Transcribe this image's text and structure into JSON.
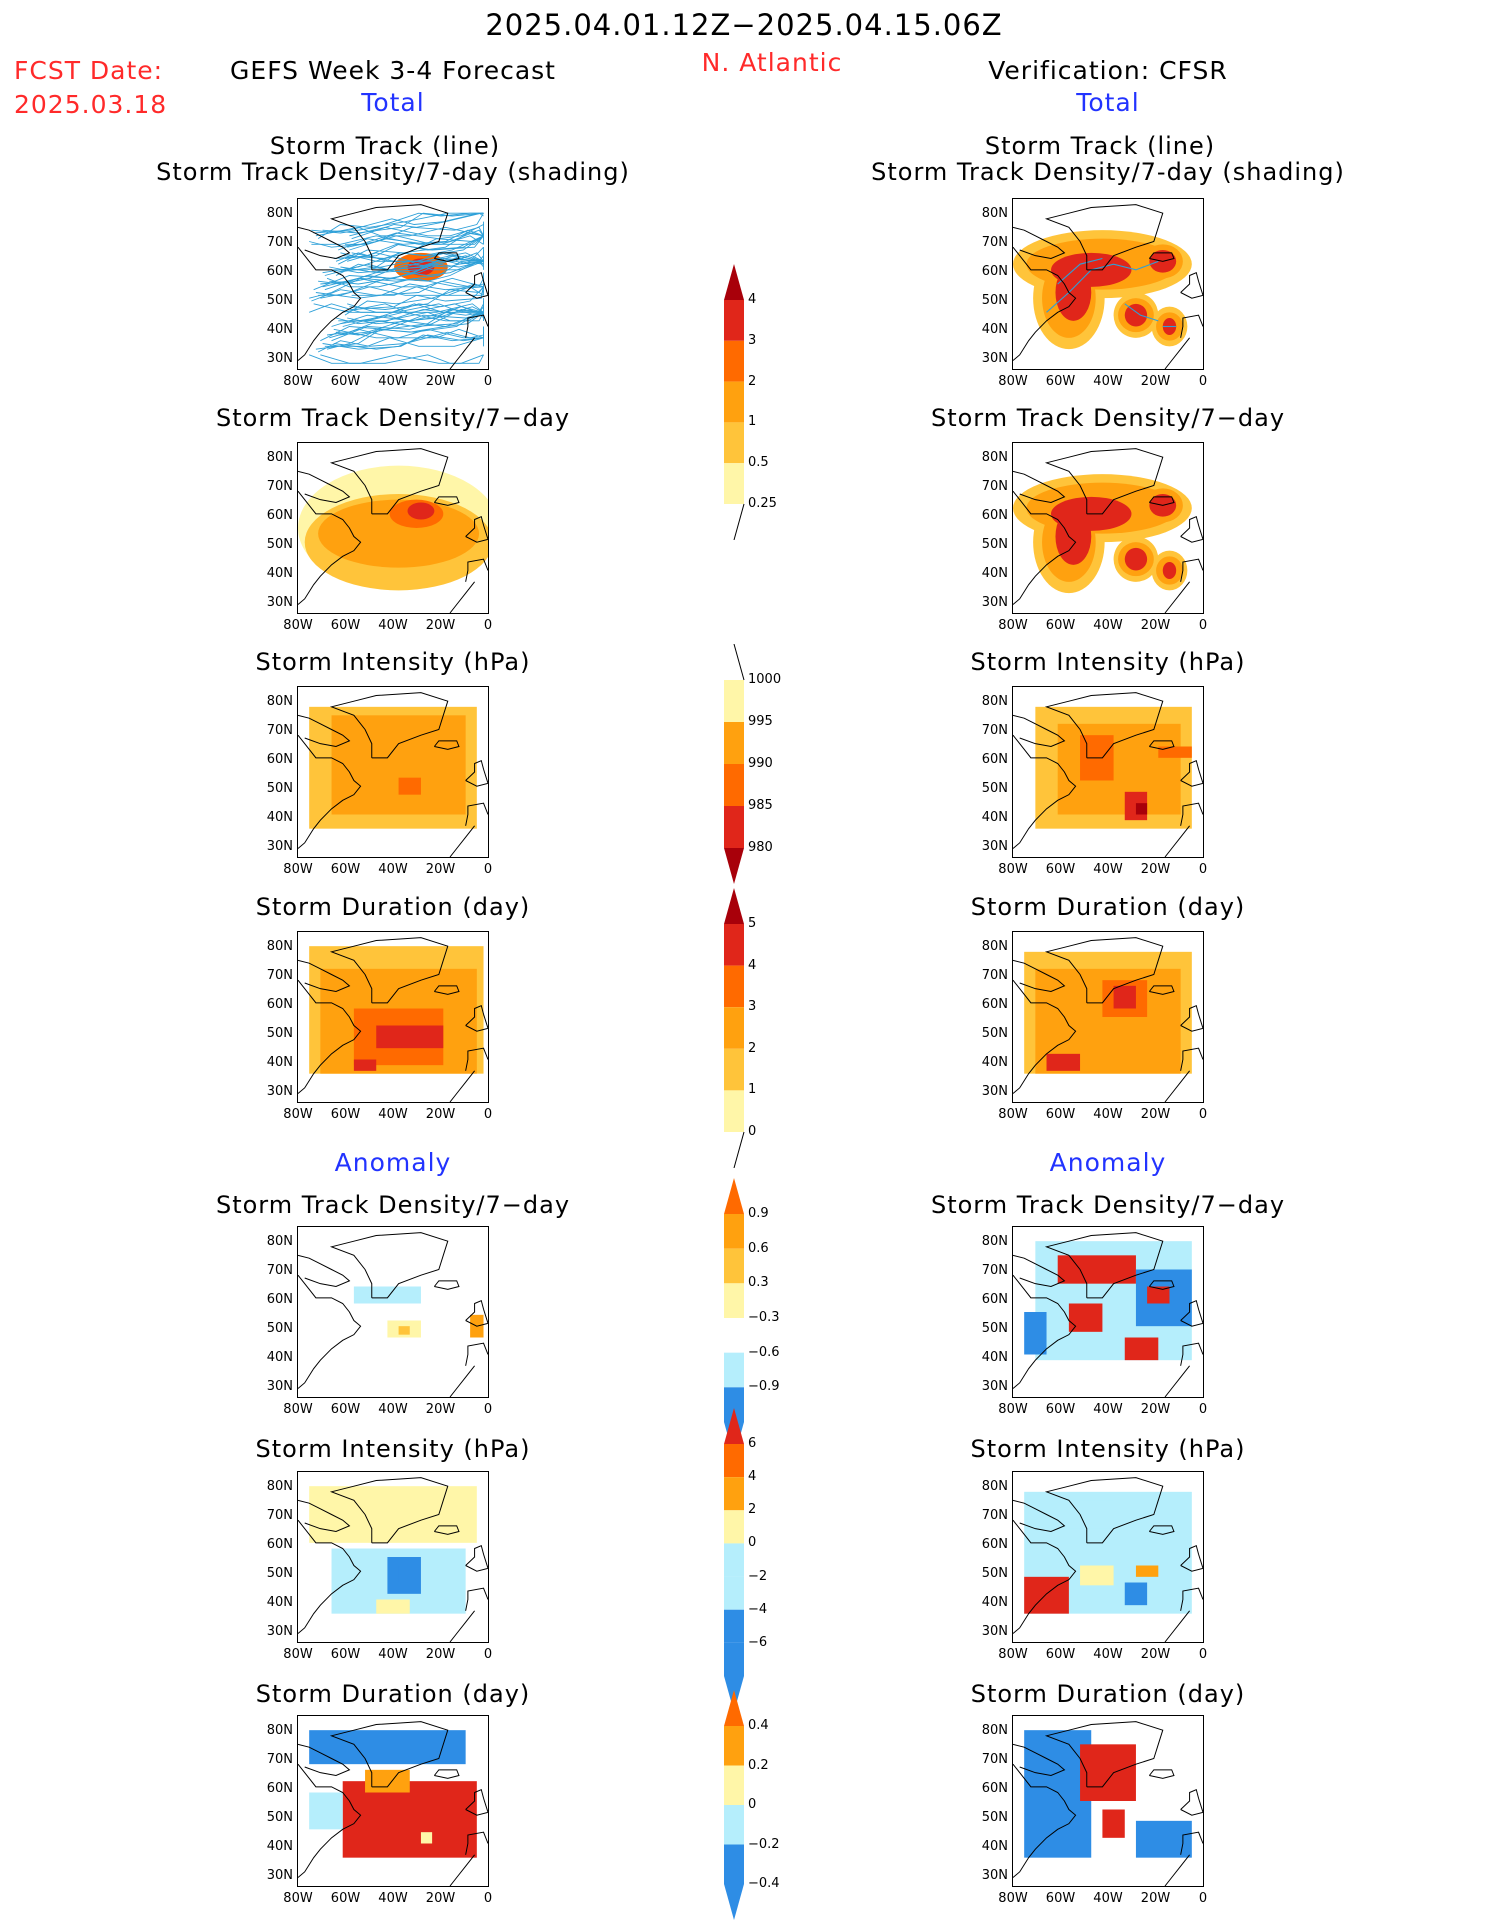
{
  "header": {
    "period": "2025.04.01.12Z−2025.04.15.06Z",
    "fcst_label": "FCST Date:",
    "fcst_date": "2025.03.18",
    "region": "N. Atlantic",
    "left_title": "GEFS Week 3-4 Forecast",
    "right_title": "Verification: CFSR",
    "left_total": "Total",
    "right_total": "Total",
    "left_anomaly": "Anomaly",
    "right_anomaly": "Anomaly"
  },
  "panels": {
    "track_line": "Storm Track (line)",
    "track_shading": "Storm Track Density/7-day (shading)",
    "density": "Storm Track Density/7−day",
    "intensity": "Storm Intensity (hPa)",
    "duration": "Storm Duration (day)"
  },
  "axes": {
    "lat_ticks": [
      "80N",
      "70N",
      "60N",
      "50N",
      "40N",
      "30N"
    ],
    "lon_ticks": [
      "80W",
      "60W",
      "40W",
      "20W",
      "0"
    ]
  },
  "colorbars": {
    "density_total": [
      "4",
      "3",
      "2",
      "1",
      "0.5",
      "0.25"
    ],
    "intensity_total": [
      "1000",
      "995",
      "990",
      "985",
      "980"
    ],
    "duration_total": [
      "5",
      "4",
      "3",
      "2",
      "1",
      "0"
    ],
    "density_anom": [
      "0.9",
      "0.6",
      "0.3",
      "−0.3",
      "−0.6",
      "−0.9"
    ],
    "intensity_anom": [
      "6",
      "4",
      "2",
      "0",
      "−2",
      "−4",
      "−6"
    ],
    "duration_anom": [
      "0.4",
      "0.2",
      "0",
      "−0.2",
      "−0.4"
    ]
  },
  "colors": {
    "pale_yellow": "#fff6a8",
    "light_orange": "#ffc43a",
    "orange": "#ffa10f",
    "dark_orange": "#ff6a00",
    "red": "#e0261a",
    "dark_red": "#a8000a",
    "light_blue": "#b5eefc",
    "blue": "#2e8de5",
    "track_line": "#2ea0d8"
  }
}
